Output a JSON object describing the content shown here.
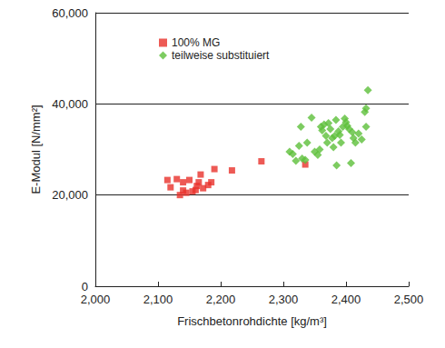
{
  "chart_data": {
    "type": "scatter",
    "x_label": "Frischbetonrohdichte [kg/m³]",
    "y_label": "E-Modul [N/mm²]",
    "xlim": [
      2000,
      2500
    ],
    "xticks": [
      2000,
      2100,
      2200,
      2300,
      2400,
      2500
    ],
    "ylim": [
      0,
      60000
    ],
    "yticks": [
      0,
      20000,
      40000,
      60000
    ],
    "grid": true,
    "legend": "upper left",
    "series": [
      {
        "name": "100% MG",
        "color": "#e8312a",
        "marker": "square",
        "x": [
          2115,
          2120,
          2130,
          2135,
          2140,
          2140,
          2145,
          2150,
          2155,
          2160,
          2162,
          2165,
          2168,
          2172,
          2180,
          2185,
          2190,
          2218,
          2265,
          2335
        ],
        "values": [
          23300,
          21700,
          23500,
          20000,
          22800,
          21000,
          20500,
          23300,
          20800,
          21100,
          22000,
          22800,
          24500,
          21500,
          22200,
          22800,
          25700,
          25400,
          27400,
          26700
        ]
      },
      {
        "name": "teilweise substituiert",
        "color": "#5cbf3a",
        "marker": "diamond",
        "x": [
          2310,
          2315,
          2320,
          2325,
          2328,
          2330,
          2335,
          2338,
          2345,
          2350,
          2355,
          2358,
          2360,
          2362,
          2365,
          2368,
          2370,
          2372,
          2375,
          2378,
          2380,
          2382,
          2384,
          2385,
          2388,
          2390,
          2392,
          2395,
          2398,
          2400,
          2402,
          2405,
          2408,
          2410,
          2412,
          2415,
          2420,
          2425,
          2430,
          2432,
          2435,
          2432
        ],
        "values": [
          29500,
          29000,
          27500,
          30800,
          35000,
          28000,
          27700,
          31500,
          37000,
          29500,
          28800,
          30000,
          35000,
          34200,
          35500,
          33000,
          31500,
          35800,
          34500,
          32500,
          30500,
          33000,
          36500,
          26500,
          34000,
          33200,
          31500,
          35000,
          36800,
          36000,
          35200,
          34500,
          27000,
          33800,
          32500,
          31500,
          33500,
          32200,
          38200,
          39000,
          43000,
          35000
        ]
      }
    ]
  }
}
